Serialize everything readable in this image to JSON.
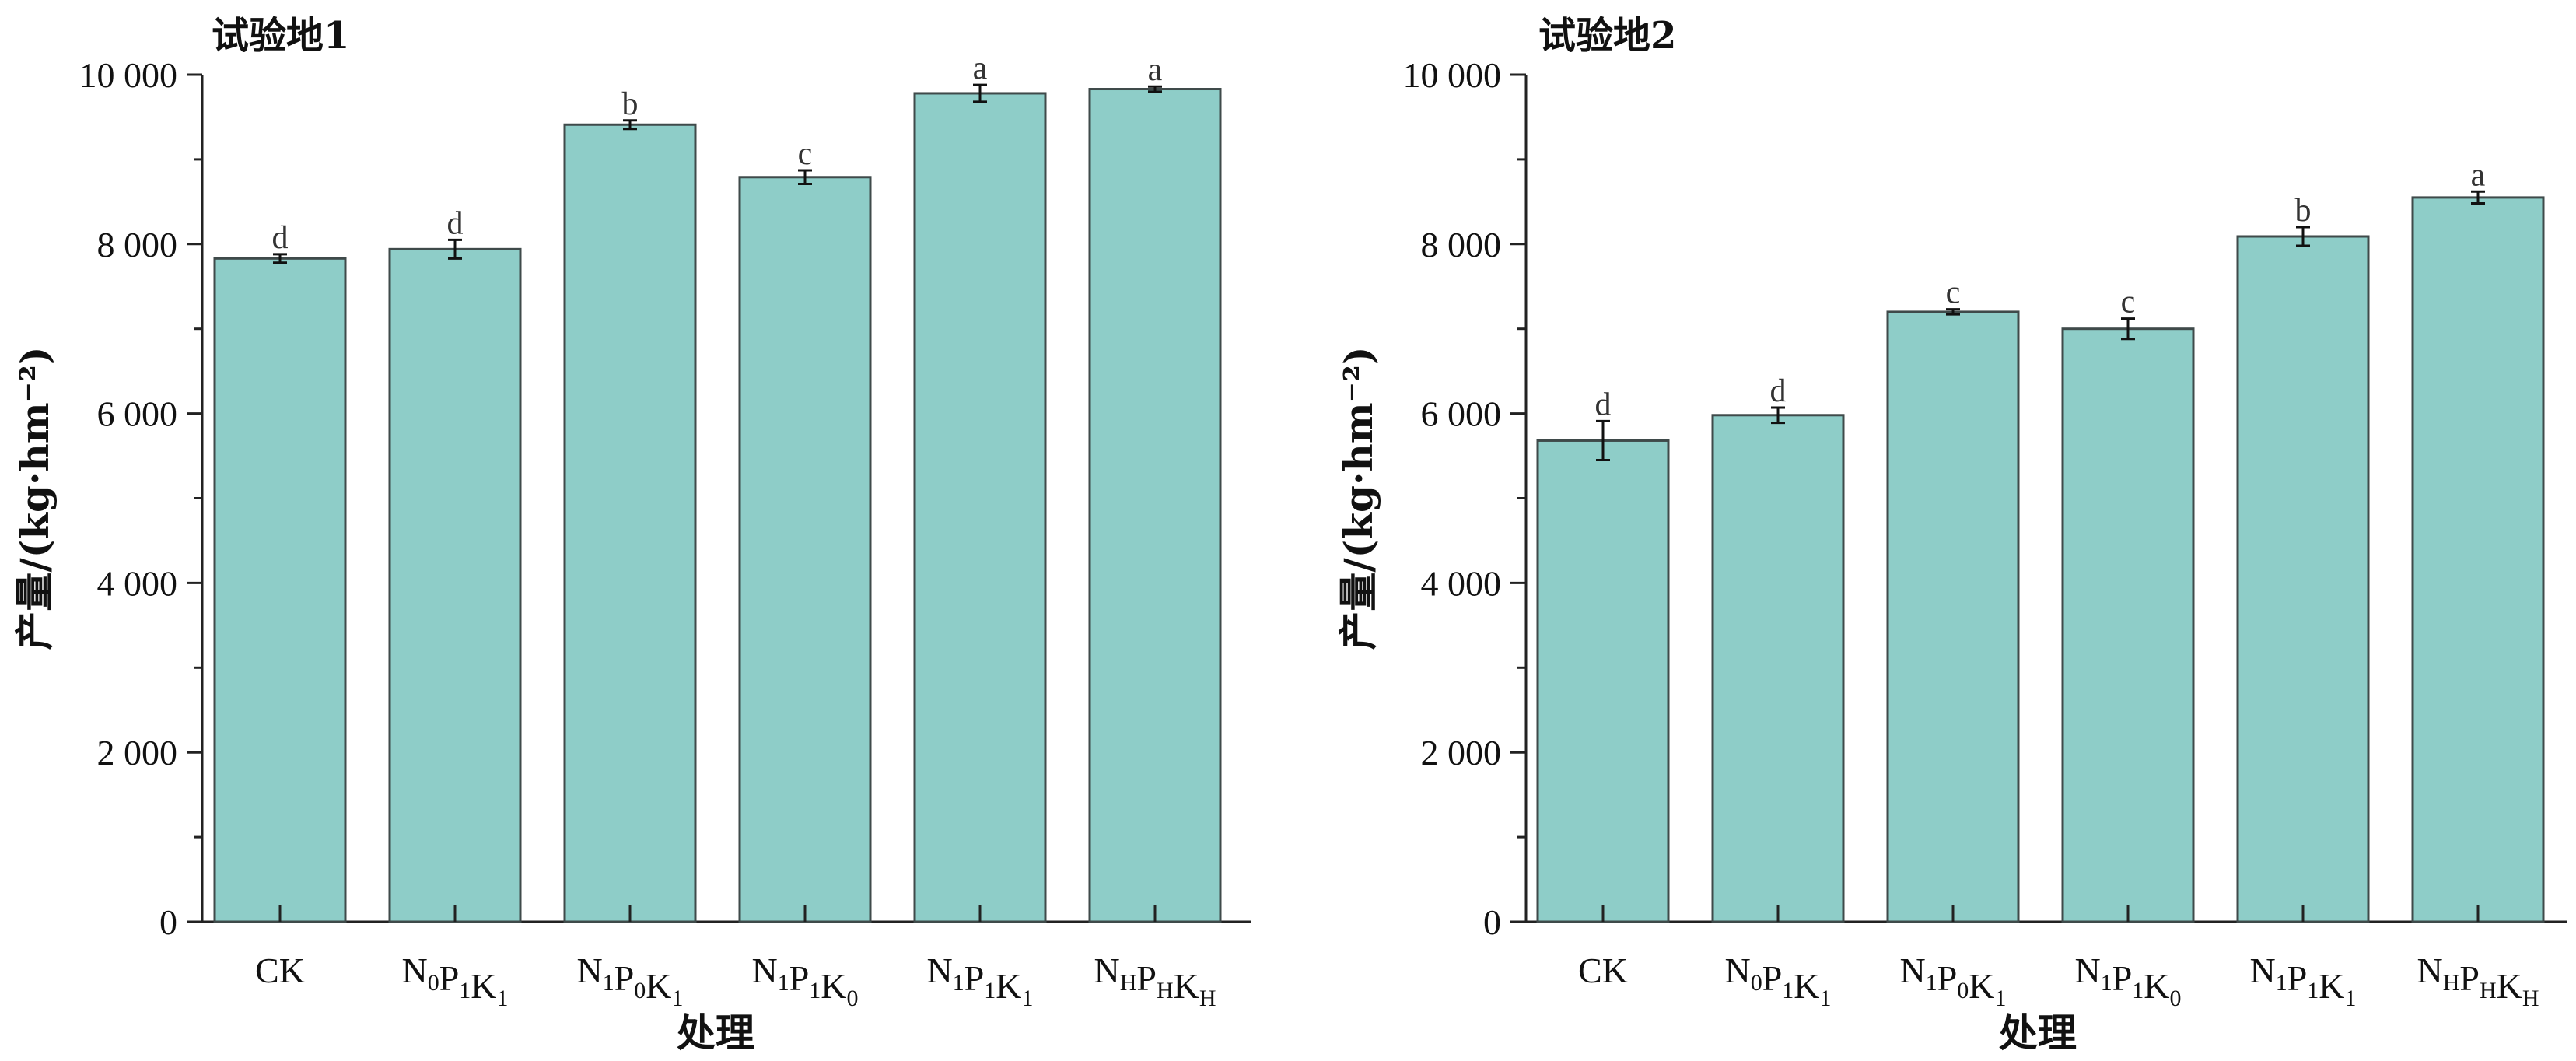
{
  "chart_data": [
    {
      "type": "bar",
      "title": "试验地1",
      "xlabel": "处理",
      "ylabel": "产量/(kg·hm⁻²)",
      "ylim": [
        0,
        10000
      ],
      "yticks": [
        0,
        2000,
        4000,
        6000,
        8000,
        10000
      ],
      "ytick_labels": [
        "0",
        "2 000",
        "4 000",
        "6 000",
        "8 000",
        "10 000"
      ],
      "categories": [
        {
          "text": "CK",
          "parts": [
            {
              "t": "CK",
              "sub": ""
            }
          ]
        },
        {
          "text": "N0P1K1",
          "parts": [
            {
              "t": "N",
              "sub": "0"
            },
            {
              "t": "P",
              "sub": "1"
            },
            {
              "t": "K",
              "sub": "1"
            }
          ]
        },
        {
          "text": "N1P0K1",
          "parts": [
            {
              "t": "N",
              "sub": "1"
            },
            {
              "t": "P",
              "sub": "0"
            },
            {
              "t": "K",
              "sub": "1"
            }
          ]
        },
        {
          "text": "N1P1K0",
          "parts": [
            {
              "t": "N",
              "sub": "1"
            },
            {
              "t": "P",
              "sub": "1"
            },
            {
              "t": "K",
              "sub": "0"
            }
          ]
        },
        {
          "text": "N1P1K1",
          "parts": [
            {
              "t": "N",
              "sub": "1"
            },
            {
              "t": "P",
              "sub": "1"
            },
            {
              "t": "K",
              "sub": "1"
            }
          ]
        },
        {
          "text": "NHPHKH",
          "parts": [
            {
              "t": "N",
              "sub": "H"
            },
            {
              "t": "P",
              "sub": "H"
            },
            {
              "t": "K",
              "sub": "H"
            }
          ]
        }
      ],
      "values": [
        7830,
        7940,
        9410,
        8790,
        9780,
        9830
      ],
      "errors": [
        50,
        110,
        50,
        80,
        100,
        30
      ],
      "significance": [
        "d",
        "d",
        "b",
        "c",
        "a",
        "a"
      ],
      "bar_color": "#8ecdc8",
      "grid": false
    },
    {
      "type": "bar",
      "title": "试验地2",
      "xlabel": "处理",
      "ylabel": "产量/(kg·hm⁻²)",
      "ylim": [
        0,
        10000
      ],
      "yticks": [
        0,
        2000,
        4000,
        6000,
        8000,
        10000
      ],
      "ytick_labels": [
        "0",
        "2 000",
        "4 000",
        "6 000",
        "8 000",
        "10 000"
      ],
      "categories": [
        {
          "text": "CK",
          "parts": [
            {
              "t": "CK",
              "sub": ""
            }
          ]
        },
        {
          "text": "N0P1K1",
          "parts": [
            {
              "t": "N",
              "sub": "0"
            },
            {
              "t": "P",
              "sub": "1"
            },
            {
              "t": "K",
              "sub": "1"
            }
          ]
        },
        {
          "text": "N1P0K1",
          "parts": [
            {
              "t": "N",
              "sub": "1"
            },
            {
              "t": "P",
              "sub": "0"
            },
            {
              "t": "K",
              "sub": "1"
            }
          ]
        },
        {
          "text": "N1P1K0",
          "parts": [
            {
              "t": "N",
              "sub": "1"
            },
            {
              "t": "P",
              "sub": "1"
            },
            {
              "t": "K",
              "sub": "0"
            }
          ]
        },
        {
          "text": "N1P1K1",
          "parts": [
            {
              "t": "N",
              "sub": "1"
            },
            {
              "t": "P",
              "sub": "1"
            },
            {
              "t": "K",
              "sub": "1"
            }
          ]
        },
        {
          "text": "NHPHKH",
          "parts": [
            {
              "t": "N",
              "sub": "H"
            },
            {
              "t": "P",
              "sub": "H"
            },
            {
              "t": "K",
              "sub": "H"
            }
          ]
        }
      ],
      "values": [
        5680,
        5980,
        7200,
        7000,
        8090,
        8550
      ],
      "errors": [
        230,
        90,
        30,
        120,
        110,
        70
      ],
      "significance": [
        "d",
        "d",
        "c",
        "c",
        "b",
        "a"
      ],
      "bar_color": "#8ecdc8",
      "grid": false
    }
  ]
}
